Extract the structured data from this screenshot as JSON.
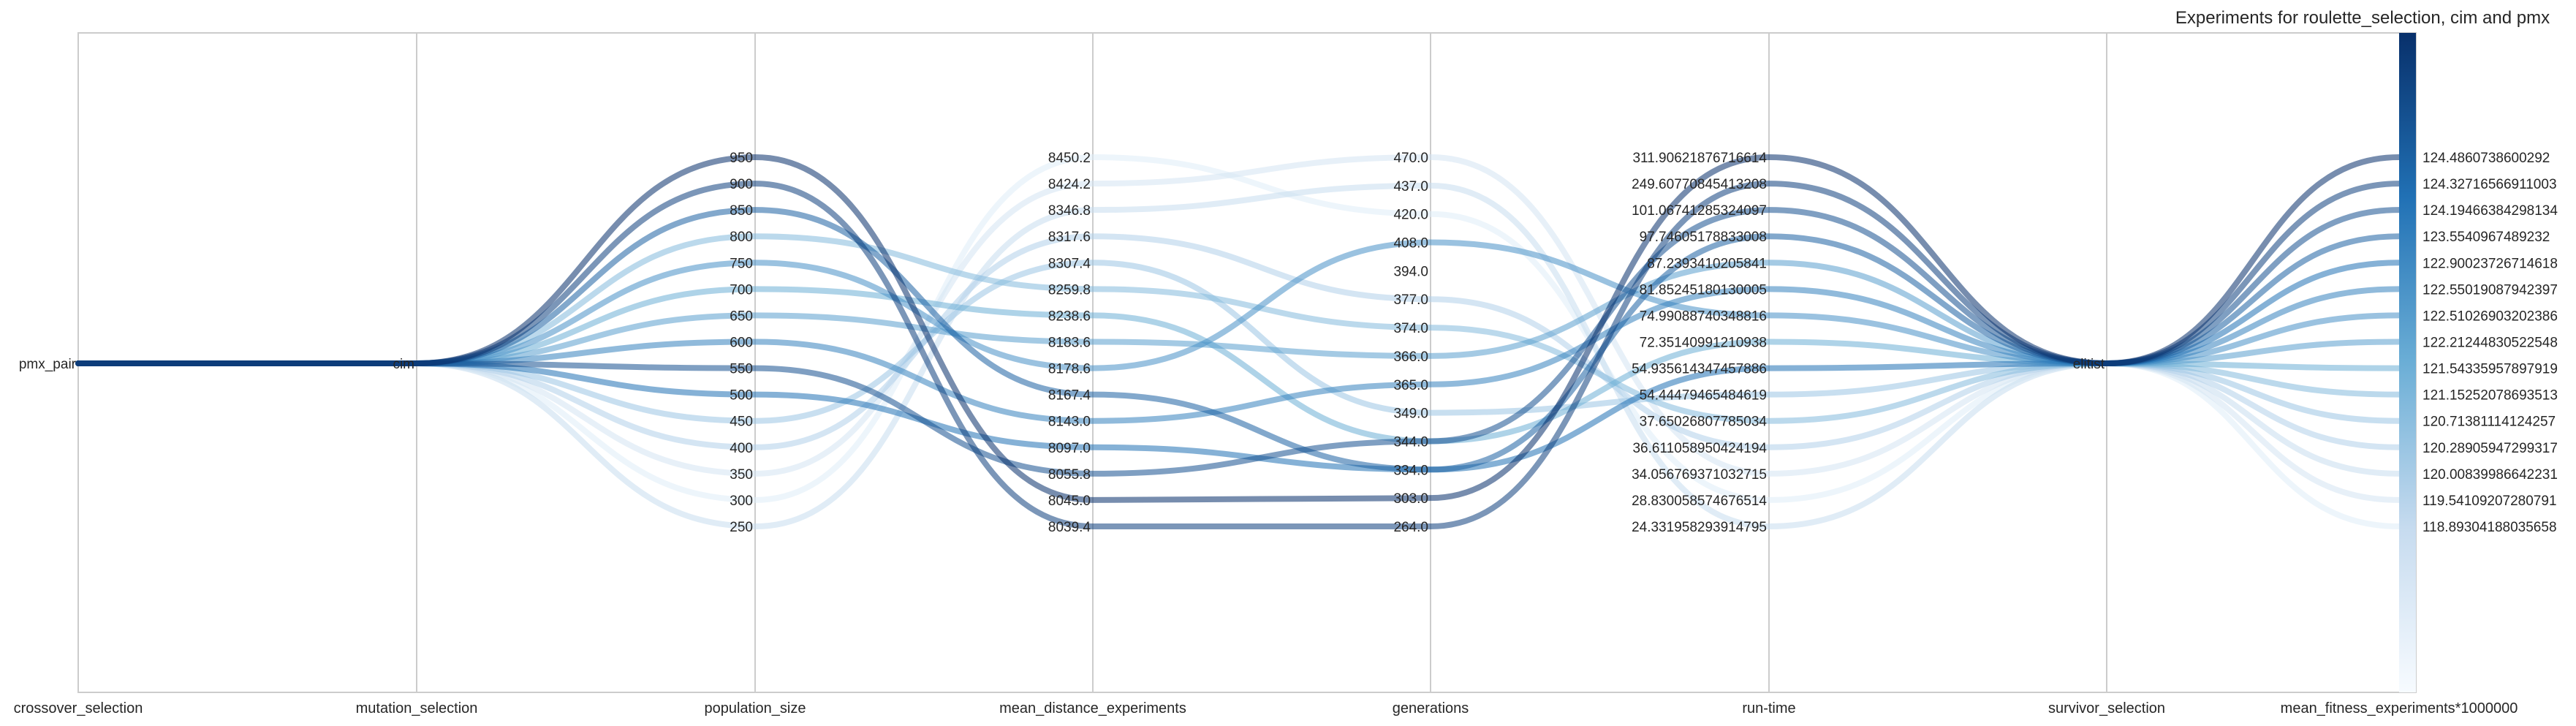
{
  "chart_data": {
    "type": "parallel_coordinates",
    "title": "Experiments for roulette_selection, cim and pmx",
    "axes": [
      {
        "key": "crossover_selection",
        "label": "crossover_selection",
        "kind": "categorical",
        "ticks": [
          "pmx_pair"
        ]
      },
      {
        "key": "mutation_selection",
        "label": "mutation_selection",
        "kind": "categorical",
        "ticks": [
          "cim"
        ]
      },
      {
        "key": "population_size",
        "label": "population_size",
        "kind": "numeric",
        "range": [
          250,
          950
        ],
        "ticks": [
          "950",
          "900",
          "850",
          "800",
          "750",
          "700",
          "650",
          "600",
          "550",
          "500",
          "450",
          "400",
          "350",
          "300",
          "250"
        ]
      },
      {
        "key": "mean_distance_experiments",
        "label": "mean_distance_experiments",
        "kind": "categorical",
        "ticks": [
          "8450.2",
          "8424.2",
          "8346.8",
          "8317.6",
          "8307.4",
          "8259.8",
          "8238.6",
          "8183.6",
          "8178.6",
          "8167.4",
          "8143.0",
          "8097.0",
          "8055.8",
          "8045.0",
          "8039.4"
        ]
      },
      {
        "key": "generations",
        "label": "generations",
        "kind": "categorical",
        "ticks": [
          "470.0",
          "437.0",
          "420.0",
          "408.0",
          "394.0",
          "377.0",
          "374.0",
          "366.0",
          "365.0",
          "349.0",
          "344.0",
          "334.0",
          "303.0",
          "264.0"
        ]
      },
      {
        "key": "run_time",
        "label": "run-time",
        "kind": "categorical",
        "ticks": [
          "311.90621876716614",
          "249.60770845413208",
          "101.06741285324097",
          "97.74605178833008",
          "87.2393410205841",
          "81.85245180130005",
          "74.99088740348816",
          "72.35140991210938",
          "54.935614347457886",
          "54.44479465484619",
          "37.65026807785034",
          "36.611058950424194",
          "34.056769371032715",
          "28.830058574676514",
          "24.331958293914795"
        ]
      },
      {
        "key": "survivor_selection",
        "label": "survivor_selection",
        "kind": "categorical",
        "ticks": [
          "elitist"
        ]
      },
      {
        "key": "mean_fitness",
        "label": "mean_fitness_experiments*1000000",
        "kind": "categorical",
        "ticks": [
          "124.4860738600292",
          "124.32716566911003",
          "124.19466384298134",
          "123.5540967489232",
          "122.90023726714618",
          "122.55019087942397",
          "122.51026903202386",
          "122.21244830522548",
          "121.54335957897919",
          "121.15252078693513",
          "120.71381114124257",
          "120.28905947299317",
          "120.00839986642231",
          "119.54109207280791",
          "118.89304188035658"
        ]
      }
    ],
    "series": [
      {
        "values": [
          "pmx_pair",
          "cim",
          950,
          "8045.0",
          "303.0",
          "311.90621876716614",
          "elitist",
          "124.4860738600292"
        ]
      },
      {
        "values": [
          "pmx_pair",
          "cim",
          900,
          "8039.4",
          "264.0",
          "249.60770845413208",
          "elitist",
          "124.32716566911003"
        ]
      },
      {
        "values": [
          "pmx_pair",
          "cim",
          550,
          "8055.8",
          "344.0",
          "101.06741285324097",
          "elitist",
          "124.19466384298134"
        ]
      },
      {
        "values": [
          "pmx_pair",
          "cim",
          850,
          "8167.4",
          "334.0",
          "97.74605178833008",
          "elitist",
          "123.5540967489232"
        ]
      },
      {
        "values": [
          "pmx_pair",
          "cim",
          500,
          "8097.0",
          "334.0",
          "54.935614347457886",
          "elitist",
          "122.90023726714618"
        ]
      },
      {
        "values": [
          "pmx_pair",
          "cim",
          600,
          "8143.0",
          "365.0",
          "81.85245180130005",
          "elitist",
          "122.55019087942397"
        ]
      },
      {
        "values": [
          "pmx_pair",
          "cim",
          750,
          "8178.6",
          "408.0",
          "74.99088740348816",
          "elitist",
          "122.51026903202386"
        ]
      },
      {
        "values": [
          "pmx_pair",
          "cim",
          650,
          "8183.6",
          "366.0",
          "87.2393410205841",
          "elitist",
          "122.21244830522548"
        ]
      },
      {
        "values": [
          "pmx_pair",
          "cim",
          700,
          "8238.6",
          "344.0",
          "72.35140991210938",
          "elitist",
          "121.54335957897919"
        ]
      },
      {
        "values": [
          "pmx_pair",
          "cim",
          800,
          "8259.8",
          "374.0",
          "37.65026807785034",
          "elitist",
          "121.15252078693513"
        ]
      },
      {
        "values": [
          "pmx_pair",
          "cim",
          450,
          "8307.4",
          "349.0",
          "54.44479465484619",
          "elitist",
          "120.71381114124257"
        ]
      },
      {
        "values": [
          "pmx_pair",
          "cim",
          400,
          "8317.6",
          "377.0",
          "36.611058950424194",
          "elitist",
          "120.28905947299317"
        ]
      },
      {
        "values": [
          "pmx_pair",
          "cim",
          250,
          "8346.8",
          "437.0",
          "24.331958293914795",
          "elitist",
          "120.00839986642231"
        ]
      },
      {
        "values": [
          "pmx_pair",
          "cim",
          350,
          "8424.2",
          "470.0",
          "34.056769371032715",
          "elitist",
          "119.54109207280791"
        ]
      },
      {
        "values": [
          "pmx_pair",
          "cim",
          300,
          "8450.2",
          "420.0",
          "28.830058574676514",
          "elitist",
          "118.89304188035658"
        ]
      }
    ],
    "color_scale": {
      "name": "Blues",
      "low": "#f7fbff",
      "high": "#08306b"
    },
    "grid": false
  }
}
